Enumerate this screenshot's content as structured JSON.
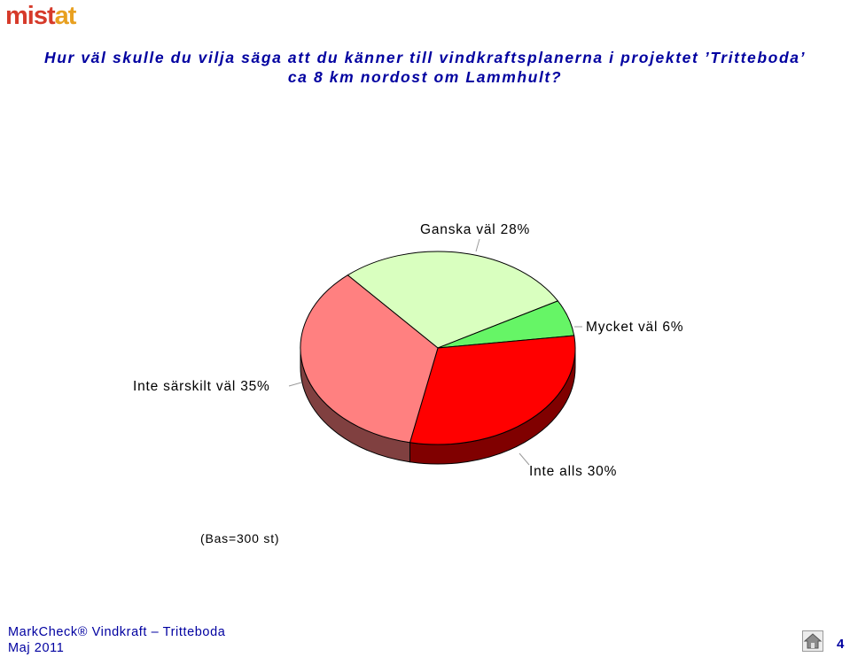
{
  "logo": {
    "part1": "mi",
    "part2": "st",
    "part3": "at"
  },
  "title_line1": "Hur väl skulle du vilja säga att du känner till vindkraftsplanerna i projektet ’Tritteboda’",
  "title_line2": "ca 8 km nordost om Lammhult?",
  "base_note": "(Bas=300 st)",
  "footer": {
    "brand": "MarkCheck® Vindkraft – Tritteboda",
    "date": "Maj 2011",
    "page": "4"
  },
  "home_icon": "home-icon",
  "chart_data": {
    "type": "pie",
    "style": "3d",
    "title": "",
    "slices": [
      {
        "label": "Ganska väl 28%",
        "category": "Ganska väl",
        "value": 28,
        "color": "#d9ffbf"
      },
      {
        "label": "Mycket väl 6%",
        "category": "Mycket väl",
        "value": 6,
        "color": "#66f566"
      },
      {
        "label": "Inte alls 30%",
        "category": "Inte alls",
        "value": 30,
        "color": "#ff0000"
      },
      {
        "label": "Inte särskilt väl 35%",
        "category": "Inte särskilt väl",
        "value": 35,
        "color": "#ff8080"
      }
    ],
    "legend": "none"
  }
}
